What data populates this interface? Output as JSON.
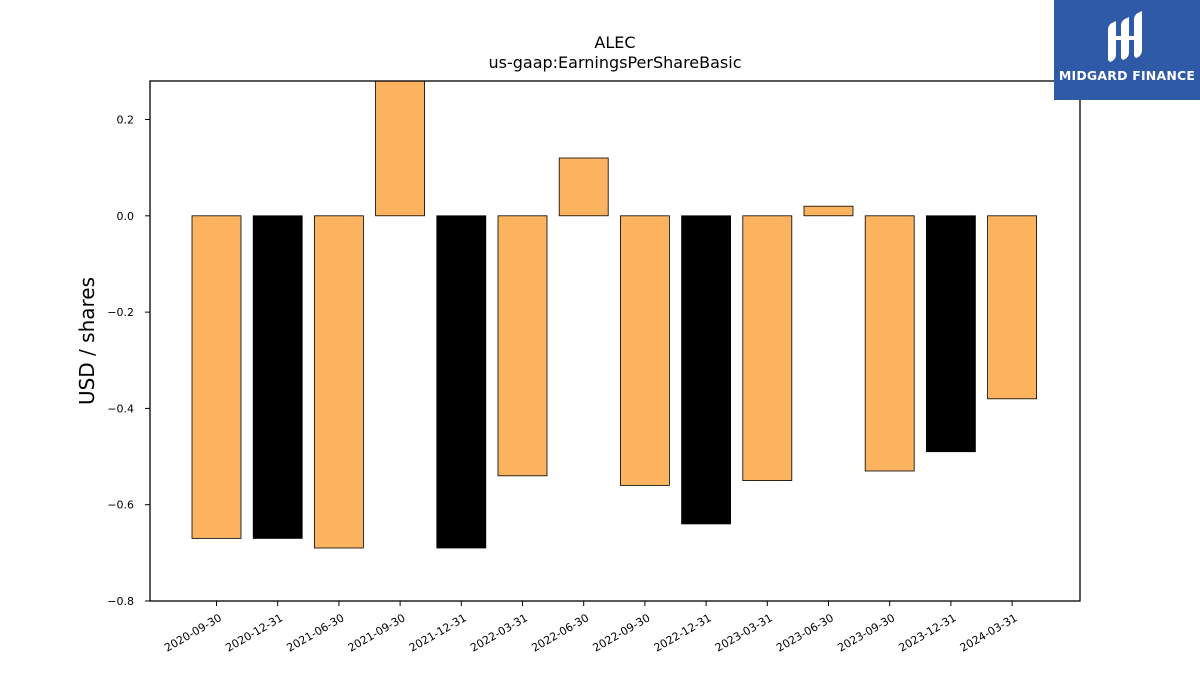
{
  "logo": {
    "text": "MIDGARD FINANCE"
  },
  "chart_data": {
    "type": "bar",
    "title": "ALEC",
    "subtitle": "us-gaap:EarningsPerShareBasic",
    "xlabel": "",
    "ylabel": "USD / shares",
    "ylim": [
      -0.8,
      0.28
    ],
    "yticks": [
      -0.8,
      -0.6,
      -0.4,
      -0.2,
      0.0,
      0.2
    ],
    "ytick_labels": [
      "−0.8",
      "−0.6",
      "−0.4",
      "−0.2",
      "0.0",
      "0.2"
    ],
    "grid": false,
    "categories": [
      "2020-09-30",
      "2020-12-31",
      "2021-06-30",
      "2021-09-30",
      "2021-12-31",
      "2022-03-31",
      "2022-06-30",
      "2022-09-30",
      "2022-12-31",
      "2023-03-31",
      "2023-06-30",
      "2023-09-30",
      "2023-12-31",
      "2024-03-31"
    ],
    "values": [
      -0.67,
      -0.67,
      -0.69,
      0.29,
      -0.69,
      -0.54,
      0.12,
      -0.56,
      -0.64,
      -0.55,
      0.02,
      -0.53,
      -0.49,
      -0.38
    ],
    "bar_colors": [
      "#fbb360",
      "#000000",
      "#fbb360",
      "#fbb360",
      "#000000",
      "#fbb360",
      "#fbb360",
      "#fbb360",
      "#000000",
      "#fbb360",
      "#fbb360",
      "#fbb360",
      "#000000",
      "#fbb360"
    ]
  }
}
